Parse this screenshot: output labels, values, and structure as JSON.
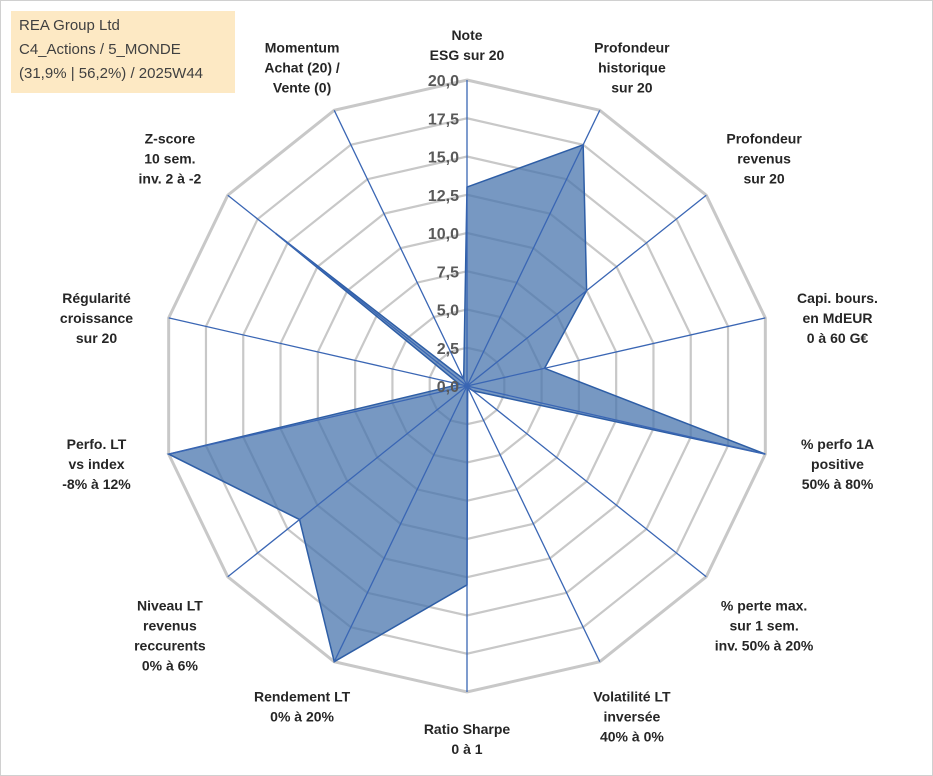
{
  "info": {
    "line1": "REA Group Ltd",
    "line2": "C4_Actions / 5_MONDE",
    "line3": "(31,9% | 56,2%) / 2025W44"
  },
  "chart_data": {
    "type": "radar",
    "title": "",
    "rmin": 0,
    "rmax": 20,
    "ticks": [
      "0,0",
      "2,5",
      "5,0",
      "7,5",
      "10,0",
      "12,5",
      "15,0",
      "17,5",
      "20,0"
    ],
    "tick_values": [
      0,
      2.5,
      5,
      7.5,
      10,
      12.5,
      15,
      17.5,
      20
    ],
    "axes": [
      {
        "label": [
          "Note",
          "ESG sur 20"
        ],
        "value": 13.0
      },
      {
        "label": [
          "Profondeur",
          "historique",
          "sur 20"
        ],
        "value": 17.5
      },
      {
        "label": [
          "Profondeur",
          "revenus",
          "sur 20"
        ],
        "value": 10.0
      },
      {
        "label": [
          "Capi. bours.",
          "en MdEUR",
          "0 à 60 G€"
        ],
        "value": 5.2
      },
      {
        "label": [
          "% perfo 1A",
          "positive",
          "50% à 80%"
        ],
        "value": 20.0
      },
      {
        "label": [
          "% perte max.",
          "sur 1 sem.",
          "inv. 50% à 20%"
        ],
        "value": 0.5
      },
      {
        "label": [
          "Volatilité LT",
          "inversée",
          "40% à 0%"
        ],
        "value": 0.1
      },
      {
        "label": [
          "Ratio Sharpe",
          "0 à 1"
        ],
        "value": 13.0
      },
      {
        "label": [
          "Rendement LT",
          "0% à 20%"
        ],
        "value": 20.0
      },
      {
        "label": [
          "Niveau LT",
          "revenus",
          "reccurents",
          "0% à 6%"
        ],
        "value": 14.0
      },
      {
        "label": [
          "Perfo. LT",
          "vs index",
          "-8% à 12%"
        ],
        "value": 20.0
      },
      {
        "label": [
          "Régularité",
          "croissance",
          "sur 20"
        ],
        "value": 0.5
      },
      {
        "label": [
          "Z-score",
          "10 sem.",
          "inv. 2 à -2"
        ],
        "value": 16.0
      },
      {
        "label": [
          "Momentum",
          "Achat (20) /",
          "Vente (0)"
        ],
        "value": 0.5
      }
    ],
    "series": [
      {
        "values": [
          13.0,
          17.5,
          10.0,
          5.2,
          20.0,
          0.5,
          0.1,
          13.0,
          20.0,
          14.0,
          20.0,
          0.5,
          16.0,
          0.5
        ]
      }
    ],
    "colors": {
      "fill": "#4a75ad",
      "stroke": "#2e5ea6",
      "grid": "#c8c8c8",
      "spoke": "#3a66b4"
    }
  }
}
